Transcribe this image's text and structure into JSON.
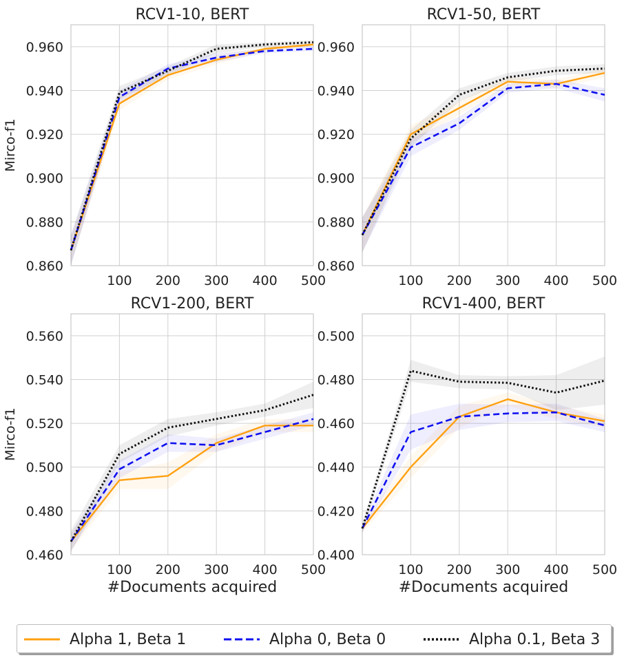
{
  "colors": {
    "orange": "#FFA010",
    "blue": "#1010F0",
    "black": "#111111",
    "grid": "#d0d0d0",
    "spine": "#c8c8c8"
  },
  "legend": {
    "placement": "bottom-center",
    "entries": [
      {
        "label": "Alpha 1, Beta 1",
        "style": "solid",
        "color": "#FFA010"
      },
      {
        "label": "Alpha 0, Beta 0",
        "style": "dashed",
        "color": "#1010F0"
      },
      {
        "label": "Alpha 0.1, Beta 3",
        "style": "dotted",
        "color": "#111111"
      }
    ]
  },
  "chart_data": [
    {
      "type": "line",
      "title": "RCV1-10, BERT",
      "xlabel": "",
      "ylabel": "Mirco-f1",
      "x": [
        0,
        100,
        200,
        300,
        400,
        500
      ],
      "xticks": [
        "100",
        "200",
        "300",
        "400",
        "500"
      ],
      "xlim": [
        0,
        500
      ],
      "ylim": [
        0.86,
        0.97
      ],
      "yticks": [
        "0.860",
        "0.880",
        "0.900",
        "0.920",
        "0.940",
        "0.960"
      ],
      "grid": true,
      "series": [
        {
          "name": "Alpha 1, Beta 1",
          "values": [
            0.867,
            0.934,
            0.947,
            0.954,
            0.959,
            0.961
          ],
          "band": [
            0.006,
            0.003,
            0.002,
            0.002,
            0.001,
            0.001
          ]
        },
        {
          "name": "Alpha 0, Beta 0",
          "values": [
            0.867,
            0.937,
            0.95,
            0.955,
            0.958,
            0.959
          ],
          "band": [
            0.007,
            0.003,
            0.002,
            0.002,
            0.001,
            0.001
          ]
        },
        {
          "name": "Alpha 0.1, Beta 3",
          "values": [
            0.867,
            0.939,
            0.949,
            0.959,
            0.961,
            0.962
          ],
          "band": [
            0.007,
            0.003,
            0.002,
            0.002,
            0.001,
            0.001
          ]
        }
      ]
    },
    {
      "type": "line",
      "title": "RCV1-50, BERT",
      "xlabel": "",
      "ylabel": "",
      "x": [
        0,
        100,
        200,
        300,
        400,
        500
      ],
      "xticks": [
        "100",
        "200",
        "300",
        "400",
        "500"
      ],
      "xlim": [
        0,
        500
      ],
      "ylim": [
        0.86,
        0.97
      ],
      "yticks": [
        "0.860",
        "0.880",
        "0.900",
        "0.920",
        "0.940",
        "0.960"
      ],
      "grid": true,
      "series": [
        {
          "name": "Alpha 1, Beta 1",
          "values": [
            0.874,
            0.92,
            0.932,
            0.944,
            0.943,
            0.948
          ],
          "band": [
            0.008,
            0.004,
            0.003,
            0.002,
            0.002,
            0.002
          ]
        },
        {
          "name": "Alpha 0, Beta 0",
          "values": [
            0.874,
            0.914,
            0.925,
            0.941,
            0.943,
            0.938
          ],
          "band": [
            0.008,
            0.004,
            0.003,
            0.002,
            0.002,
            0.003
          ]
        },
        {
          "name": "Alpha 0.1, Beta 3",
          "values": [
            0.874,
            0.918,
            0.938,
            0.946,
            0.949,
            0.95
          ],
          "band": [
            0.008,
            0.004,
            0.003,
            0.002,
            0.002,
            0.002
          ]
        }
      ]
    },
    {
      "type": "line",
      "title": "RCV1-200, BERT",
      "xlabel": "#Documents acquired",
      "ylabel": "Mirco-f1",
      "x": [
        0,
        100,
        200,
        300,
        400,
        500
      ],
      "xticks": [
        "100",
        "200",
        "300",
        "400",
        "500"
      ],
      "xlim": [
        0,
        500
      ],
      "ylim": [
        0.46,
        0.57
      ],
      "yticks": [
        "0.460",
        "0.480",
        "0.500",
        "0.520",
        "0.540",
        "0.560"
      ],
      "grid": true,
      "series": [
        {
          "name": "Alpha 1, Beta 1",
          "values": [
            0.466,
            0.494,
            0.496,
            0.511,
            0.519,
            0.519
          ],
          "band": [
            0.004,
            0.004,
            0.006,
            0.004,
            0.003,
            0.003
          ]
        },
        {
          "name": "Alpha 0, Beta 0",
          "values": [
            0.466,
            0.499,
            0.511,
            0.51,
            0.516,
            0.522
          ],
          "band": [
            0.004,
            0.004,
            0.004,
            0.003,
            0.003,
            0.003
          ]
        },
        {
          "name": "Alpha 0.1, Beta 3",
          "values": [
            0.466,
            0.506,
            0.518,
            0.522,
            0.526,
            0.533
          ],
          "band": [
            0.005,
            0.004,
            0.004,
            0.003,
            0.003,
            0.006
          ]
        }
      ]
    },
    {
      "type": "line",
      "title": "RCV1-400, BERT",
      "xlabel": "#Documents acquired",
      "ylabel": "",
      "x": [
        0,
        100,
        200,
        300,
        400,
        500
      ],
      "xticks": [
        "100",
        "200",
        "300",
        "400",
        "500"
      ],
      "xlim": [
        0,
        500
      ],
      "ylim": [
        0.4,
        0.51
      ],
      "yticks": [
        "0.400",
        "0.420",
        "0.440",
        "0.460",
        "0.480",
        "0.500"
      ],
      "grid": true,
      "series": [
        {
          "name": "Alpha 1, Beta 1",
          "values": [
            0.412,
            0.44,
            0.463,
            0.471,
            0.465,
            0.461
          ],
          "band": [
            0.002,
            0.005,
            0.005,
            0.003,
            0.003,
            0.003
          ]
        },
        {
          "name": "Alpha 0, Beta 0",
          "values": [
            0.412,
            0.456,
            0.463,
            0.4645,
            0.465,
            0.459
          ],
          "band": [
            0.002,
            0.008,
            0.006,
            0.004,
            0.004,
            0.003
          ]
        },
        {
          "name": "Alpha 0.1, Beta 3",
          "values": [
            0.412,
            0.484,
            0.479,
            0.4785,
            0.474,
            0.4795
          ],
          "band": [
            0.002,
            0.005,
            0.003,
            0.003,
            0.008,
            0.011
          ]
        }
      ]
    }
  ]
}
